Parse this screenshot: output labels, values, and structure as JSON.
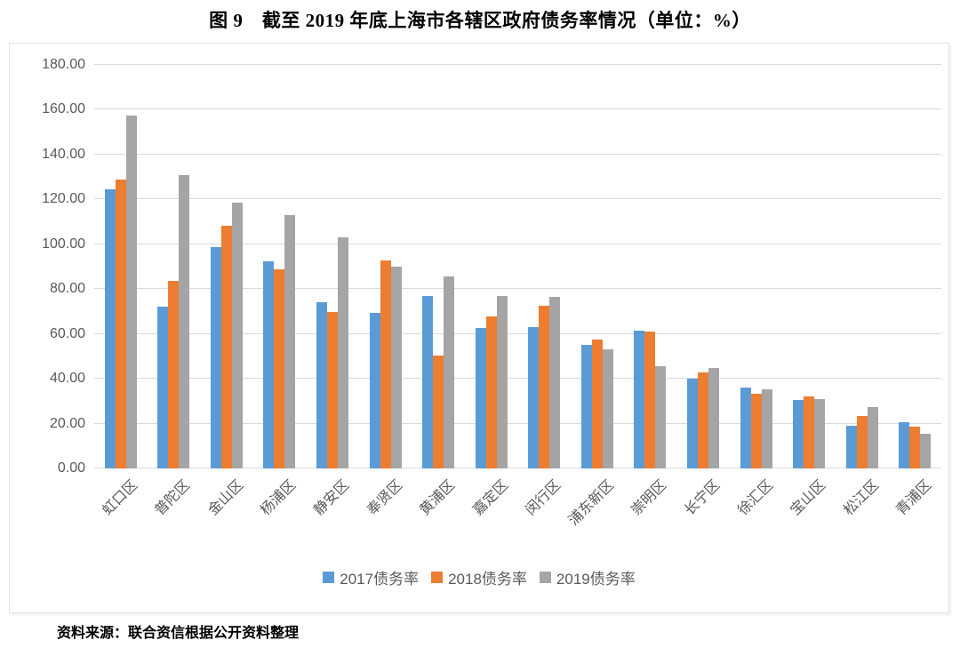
{
  "title": "图 9　截至 2019 年底上海市各辖区政府债务率情况（单位：%）",
  "source": "资料来源：联合资信根据公开资料整理",
  "colors": {
    "series_2017": "#5B9BD5",
    "series_2018": "#ED7D31",
    "series_2019": "#A5A5A5",
    "gridline": "#D9D9D9",
    "axis_text": "#595959",
    "box_border": "#E3E3E3"
  },
  "chart_data": {
    "type": "bar",
    "title": "图 9　截至 2019 年底上海市各辖区政府债务率情况（单位：%）",
    "xlabel": "",
    "ylabel": "",
    "ylim": [
      0,
      180
    ],
    "ytick_step": 20,
    "yticks": [
      "0.00",
      "20.00",
      "40.00",
      "60.00",
      "80.00",
      "100.00",
      "120.00",
      "140.00",
      "160.00",
      "180.00"
    ],
    "grid": true,
    "legend_position": "bottom",
    "categories": [
      "虹口区",
      "普陀区",
      "金山区",
      "杨浦区",
      "静安区",
      "奉贤区",
      "黄浦区",
      "嘉定区",
      "闵行区",
      "浦东新区",
      "崇明区",
      "长宁区",
      "徐汇区",
      "宝山区",
      "松江区",
      "青浦区"
    ],
    "series": [
      {
        "name": "2017债务率",
        "color": "#5B9BD5",
        "values": [
          124.5,
          72.0,
          98.6,
          92.4,
          74.0,
          69.6,
          76.8,
          62.8,
          63.1,
          55.3,
          61.6,
          40.0,
          36.0,
          30.4,
          19.2,
          20.8
        ]
      },
      {
        "name": "2018债务率",
        "color": "#ED7D31",
        "values": [
          128.8,
          83.7,
          108.2,
          89.0,
          69.8,
          92.8,
          50.5,
          67.9,
          72.5,
          57.7,
          61.1,
          42.7,
          33.2,
          32.3,
          23.6,
          18.5
        ]
      },
      {
        "name": "2019债务率",
        "color": "#A5A5A5",
        "values": [
          157.3,
          130.8,
          118.7,
          113.0,
          103.3,
          90.2,
          85.5,
          77.0,
          76.6,
          53.0,
          45.8,
          44.9,
          35.3,
          30.9,
          27.3,
          15.4
        ]
      }
    ]
  }
}
